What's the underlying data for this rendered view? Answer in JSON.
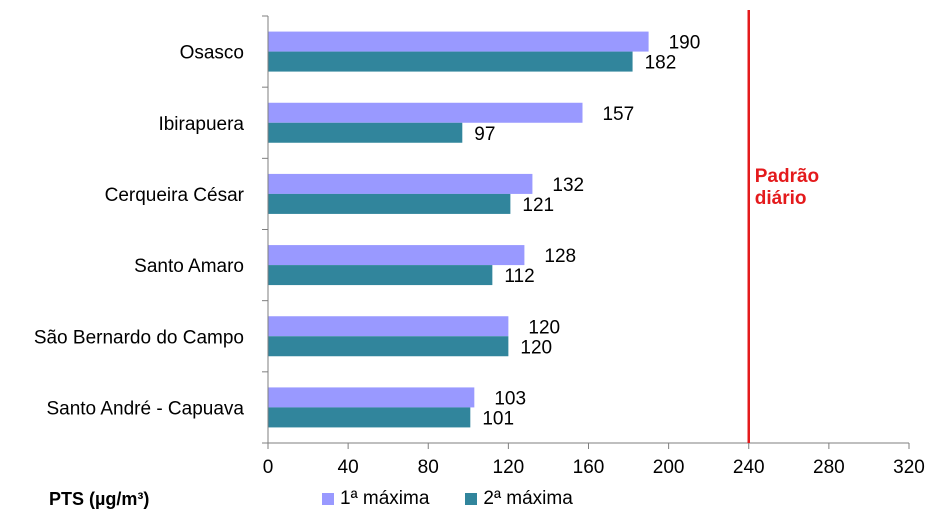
{
  "chart_data": {
    "type": "bar",
    "orientation": "horizontal",
    "categories": [
      "Osasco",
      "Ibirapuera",
      "Cerqueira César",
      "Santo Amaro",
      "São Bernardo do Campo",
      "Santo André - Capuava"
    ],
    "series": [
      {
        "name": "1ª máxima",
        "values": [
          190,
          157,
          132,
          128,
          120,
          103
        ],
        "color": "#9999ff"
      },
      {
        "name": "2ª máxima",
        "values": [
          182,
          97,
          121,
          112,
          120,
          101
        ],
        "color": "#31859c"
      }
    ],
    "xlim": [
      0,
      320
    ],
    "xticks": [
      0,
      40,
      80,
      120,
      160,
      200,
      240,
      280,
      320
    ],
    "unit_label": "PTS (µg/m³)",
    "reference_line": {
      "value": 240,
      "label_line1": "Padrão",
      "label_line2": "diário",
      "color": "#e41a1c"
    },
    "grid": false,
    "legend_position": "bottom"
  }
}
